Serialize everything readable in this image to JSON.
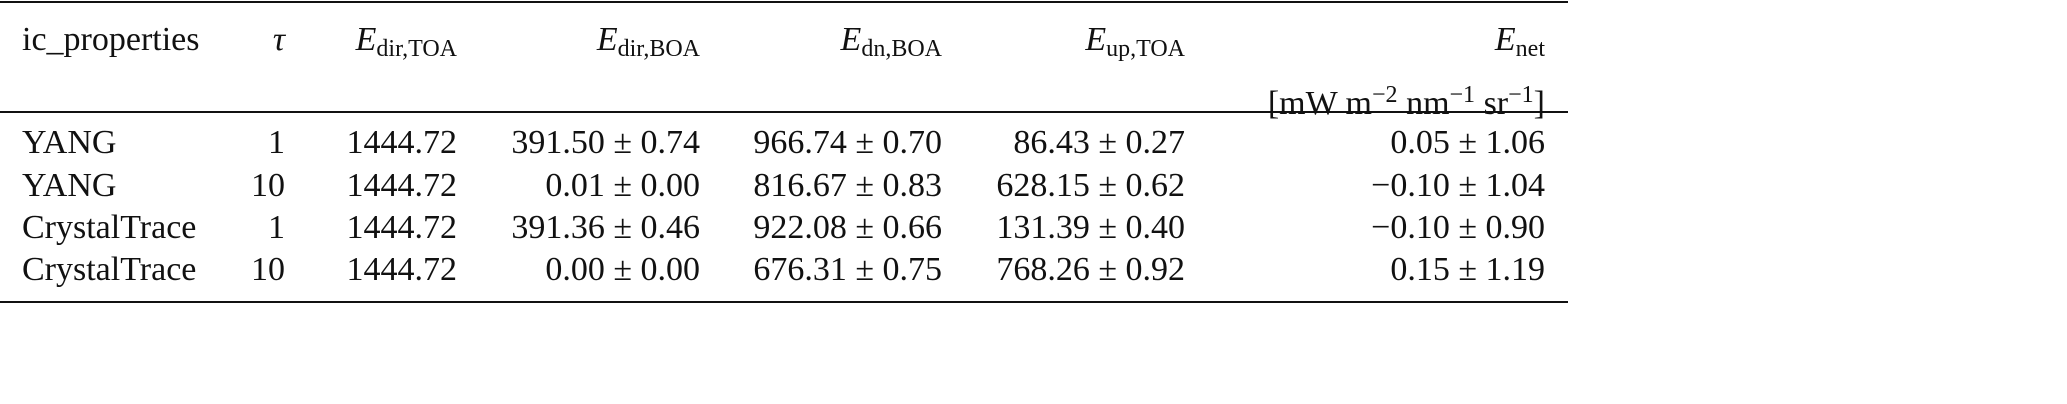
{
  "table": {
    "header": [
      {
        "text": "ic_properties"
      },
      {
        "text": "τ"
      },
      {
        "symbol": "E",
        "sub": "dir,TOA"
      },
      {
        "symbol": "E",
        "sub": "dir,BOA"
      },
      {
        "symbol": "E",
        "sub": "dn,BOA"
      },
      {
        "symbol": "E",
        "sub": "up,TOA"
      },
      {
        "symbol": "E",
        "sub": "net",
        "units": [
          {
            "text": "[mW m"
          },
          {
            "sup": "−2"
          },
          {
            "text": " nm"
          },
          {
            "sup": "−1"
          },
          {
            "text": " sr"
          },
          {
            "sup": "−1"
          },
          {
            "text": "]"
          }
        ]
      }
    ],
    "rows": [
      [
        "YANG",
        "1",
        "1444.72",
        "391.50 ± 0.74",
        "966.74 ± 0.70",
        "86.43 ± 0.27",
        "0.05 ± 1.06"
      ],
      [
        "YANG",
        "10",
        "1444.72",
        "0.01 ± 0.00",
        "816.67 ± 0.83",
        "628.15 ± 0.62",
        "−0.10 ± 1.04"
      ],
      [
        "CrystalTrace",
        "1",
        "1444.72",
        "391.36 ± 0.46",
        "922.08 ± 0.66",
        "131.39 ± 0.40",
        "−0.10 ± 0.90"
      ],
      [
        "CrystalTrace",
        "10",
        "1444.72",
        "0.00 ± 0.00",
        "676.31 ± 0.75",
        "768.26 ± 0.92",
        "0.15 ± 1.19"
      ]
    ]
  }
}
